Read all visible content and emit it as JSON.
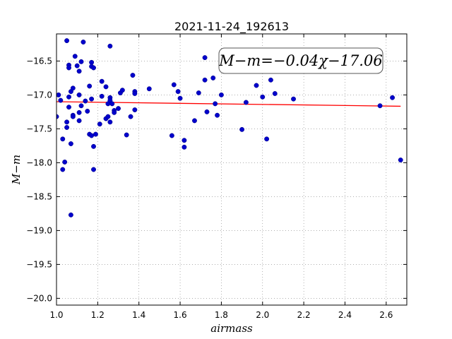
{
  "chart_data": {
    "type": "scatter",
    "title": "2021-11-24_192613",
    "xlabel": "airmass",
    "ylabel": "M−m",
    "xlim": [
      1.0,
      2.7
    ],
    "ylim": [
      -20.1,
      -16.1
    ],
    "y_inverted": true,
    "grid": true,
    "xticks": [
      1.0,
      1.2,
      1.4,
      1.6,
      1.8,
      2.0,
      2.2,
      2.4,
      2.6
    ],
    "xtick_labels": [
      "1.0",
      "1.2",
      "1.4",
      "1.6",
      "1.8",
      "2.0",
      "2.2",
      "2.4",
      "2.6"
    ],
    "yticks": [
      -16.5,
      -17.0,
      -17.5,
      -18.0,
      -18.5,
      -19.0,
      -19.5,
      -20.0
    ],
    "ytick_labels": [
      "−16.5",
      "−17.0",
      "−17.5",
      "−18.0",
      "−18.5",
      "−19.0",
      "−19.5",
      "−20.0"
    ],
    "annotation": "M−m=−0.04χ−17.06",
    "colors": {
      "points": "#0000cc",
      "fit": "#ff0000",
      "grid": "#7f7f7f"
    },
    "fit_line": {
      "slope": -0.04,
      "intercept": -17.06
    },
    "series": [
      {
        "type": "scatter",
        "points": [
          [
            1.0,
            -17.32
          ],
          [
            1.01,
            -17.0
          ],
          [
            1.02,
            -17.08
          ],
          [
            1.03,
            -17.65
          ],
          [
            1.03,
            -18.1
          ],
          [
            1.04,
            -17.99
          ],
          [
            1.05,
            -16.2
          ],
          [
            1.05,
            -17.4
          ],
          [
            1.05,
            -17.48
          ],
          [
            1.06,
            -16.56
          ],
          [
            1.06,
            -16.6
          ],
          [
            1.06,
            -17.03
          ],
          [
            1.06,
            -17.18
          ],
          [
            1.07,
            -16.95
          ],
          [
            1.07,
            -18.77
          ],
          [
            1.07,
            -17.72
          ],
          [
            1.08,
            -16.9
          ],
          [
            1.08,
            -17.3
          ],
          [
            1.08,
            -17.32
          ],
          [
            1.09,
            -16.43
          ],
          [
            1.1,
            -16.57
          ],
          [
            1.11,
            -16.65
          ],
          [
            1.11,
            -17.0
          ],
          [
            1.11,
            -17.26
          ],
          [
            1.11,
            -17.38
          ],
          [
            1.12,
            -16.51
          ],
          [
            1.12,
            -17.16
          ],
          [
            1.13,
            -16.22
          ],
          [
            1.14,
            -17.09
          ],
          [
            1.15,
            -17.24
          ],
          [
            1.16,
            -16.87
          ],
          [
            1.16,
            -17.58
          ],
          [
            1.17,
            -16.52
          ],
          [
            1.17,
            -16.58
          ],
          [
            1.17,
            -17.06
          ],
          [
            1.17,
            -17.6
          ],
          [
            1.18,
            -16.6
          ],
          [
            1.18,
            -17.76
          ],
          [
            1.18,
            -18.1
          ],
          [
            1.19,
            -17.58
          ],
          [
            1.21,
            -17.43
          ],
          [
            1.22,
            -16.8
          ],
          [
            1.22,
            -17.02
          ],
          [
            1.24,
            -16.88
          ],
          [
            1.24,
            -17.35
          ],
          [
            1.25,
            -17.13
          ],
          [
            1.25,
            -17.32
          ],
          [
            1.26,
            -16.28
          ],
          [
            1.26,
            -17.04
          ],
          [
            1.26,
            -17.08
          ],
          [
            1.26,
            -17.4
          ],
          [
            1.27,
            -17.13
          ],
          [
            1.28,
            -17.23
          ],
          [
            1.28,
            -17.26
          ],
          [
            1.3,
            -17.2
          ],
          [
            1.31,
            -16.97
          ],
          [
            1.32,
            -16.93
          ],
          [
            1.34,
            -17.59
          ],
          [
            1.36,
            -17.32
          ],
          [
            1.37,
            -16.71
          ],
          [
            1.38,
            -16.95
          ],
          [
            1.38,
            -16.98
          ],
          [
            1.38,
            -17.22
          ],
          [
            1.45,
            -16.91
          ],
          [
            1.56,
            -17.6
          ],
          [
            1.57,
            -16.85
          ],
          [
            1.59,
            -16.95
          ],
          [
            1.6,
            -17.05
          ],
          [
            1.62,
            -17.67
          ],
          [
            1.62,
            -17.77
          ],
          [
            1.67,
            -17.38
          ],
          [
            1.69,
            -16.97
          ],
          [
            1.72,
            -16.45
          ],
          [
            1.72,
            -16.78
          ],
          [
            1.73,
            -17.25
          ],
          [
            1.76,
            -16.75
          ],
          [
            1.77,
            -17.13
          ],
          [
            1.78,
            -17.3
          ],
          [
            1.8,
            -17.0
          ],
          [
            1.9,
            -17.51
          ],
          [
            1.92,
            -17.11
          ],
          [
            1.97,
            -16.86
          ],
          [
            2.0,
            -17.03
          ],
          [
            2.02,
            -17.65
          ],
          [
            2.04,
            -16.78
          ],
          [
            2.06,
            -16.98
          ],
          [
            2.15,
            -17.06
          ],
          [
            2.57,
            -17.16
          ],
          [
            2.63,
            -17.04
          ],
          [
            2.67,
            -17.96
          ]
        ]
      }
    ]
  }
}
